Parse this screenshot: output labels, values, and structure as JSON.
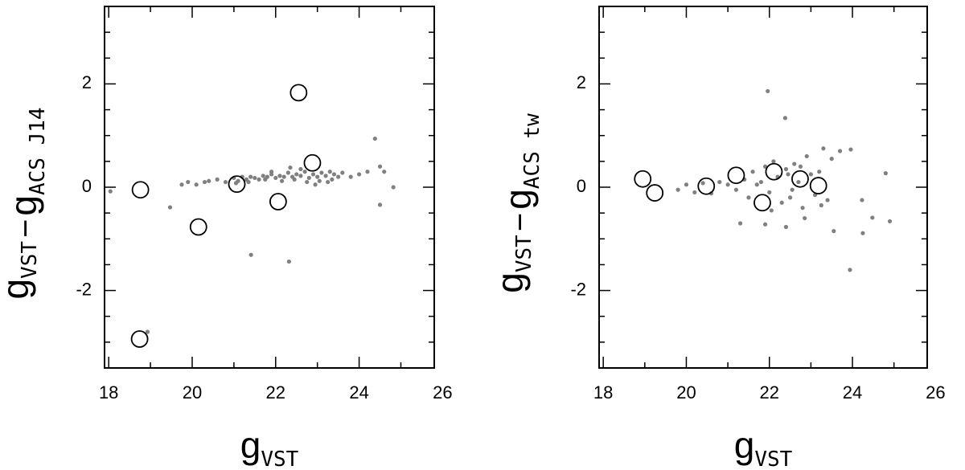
{
  "chart_data": [
    {
      "type": "scatter",
      "xlabel": [
        {
          "text": "g",
          "sub": "VST"
        }
      ],
      "ylabel": [
        {
          "text": "g",
          "sub": "VST"
        },
        {
          "text": "−"
        },
        {
          "text": "g",
          "sub": "ACS J14"
        }
      ],
      "xlim": [
        17.9,
        25.8
      ],
      "ylim": [
        -3.5,
        3.5
      ],
      "xticks": [
        18,
        20,
        22,
        24,
        26
      ],
      "yticks": [
        -2,
        0,
        2
      ],
      "xminorticks": [
        19,
        21,
        23,
        25
      ],
      "yminorticks": [
        -3,
        -2.5,
        -1.5,
        -1,
        -0.5,
        0.5,
        1,
        1.5,
        2.5,
        3
      ],
      "series": [
        {
          "marker": "dot",
          "color": "#808080",
          "x": [
            18.04,
            19.47,
            19.75,
            19.9,
            20.1,
            20.3,
            20.4,
            20.6,
            20.8,
            21.0,
            21.1,
            21.2,
            21.3,
            21.4,
            21.5,
            21.6,
            21.7,
            21.8,
            21.9,
            22.0,
            22.1,
            22.2,
            22.3,
            22.4,
            22.5,
            22.6,
            22.7,
            22.8,
            22.9,
            23.0,
            23.1,
            23.2,
            23.3,
            23.4,
            23.5,
            23.6,
            21.05,
            21.35,
            21.75,
            22.15,
            22.45,
            22.75,
            23.05,
            23.35,
            23.8,
            24.0,
            24.2,
            24.38,
            24.5,
            24.6,
            24.82,
            21.41,
            22.32,
            18.93,
            24.5,
            22.6,
            22.95,
            23.25,
            21.9,
            22.35
          ],
          "values": [
            -0.08,
            -0.39,
            0.05,
            0.1,
            0.05,
            0.1,
            0.12,
            0.15,
            0.1,
            0.18,
            0.12,
            0.2,
            0.15,
            0.2,
            0.18,
            0.15,
            0.22,
            0.2,
            0.25,
            0.18,
            0.22,
            0.2,
            0.28,
            0.2,
            0.25,
            0.22,
            0.3,
            0.18,
            0.25,
            0.2,
            0.28,
            0.22,
            0.3,
            0.25,
            0.2,
            0.28,
            0.08,
            0.1,
            0.15,
            0.12,
            0.15,
            0.1,
            0.12,
            0.15,
            0.2,
            0.25,
            0.3,
            0.94,
            0.4,
            0.3,
            0.0,
            -1.31,
            -1.44,
            -2.8,
            -0.34,
            0.35,
            0.05,
            0.1,
            0.3,
            0.38
          ]
        },
        {
          "marker": "circle",
          "color": "#000000",
          "x": [
            18.76,
            20.15,
            21.07,
            22.06,
            22.55,
            22.88,
            18.74
          ],
          "values": [
            -0.05,
            -0.77,
            0.06,
            -0.28,
            1.83,
            0.47,
            -2.94
          ]
        }
      ]
    },
    {
      "type": "scatter",
      "xlabel": [
        {
          "text": "g",
          "sub": "VST"
        }
      ],
      "ylabel": [
        {
          "text": "g",
          "sub": "VST"
        },
        {
          "text": "−"
        },
        {
          "text": "g",
          "sub": "ACS tw"
        }
      ],
      "xlim": [
        17.9,
        25.8
      ],
      "ylim": [
        -3.5,
        3.5
      ],
      "xticks": [
        18,
        20,
        22,
        24,
        26
      ],
      "yticks": [
        -2,
        0,
        2
      ],
      "xminorticks": [
        19,
        21,
        23,
        25
      ],
      "yminorticks": [
        -3,
        -2.5,
        -1.5,
        -1,
        -0.5,
        0.5,
        1,
        1.5,
        2.5,
        3
      ],
      "series": [
        {
          "marker": "dot",
          "color": "#808080",
          "x": [
            19.8,
            20.0,
            20.2,
            20.4,
            20.6,
            20.8,
            21.0,
            21.2,
            21.4,
            21.5,
            21.6,
            21.8,
            21.9,
            22.0,
            22.1,
            22.2,
            22.3,
            22.4,
            22.5,
            22.6,
            22.7,
            22.8,
            22.9,
            23.0,
            23.1,
            23.2,
            23.3,
            23.4,
            23.5,
            23.7,
            21.3,
            21.7,
            22.05,
            22.45,
            22.85,
            23.25,
            22.55,
            22.75,
            21.96,
            22.38,
            23.94,
            24.25,
            23.96,
            24.8,
            24.9,
            24.48,
            21.9,
            22.4,
            24.23,
            23.55
          ],
          "values": [
            -0.05,
            0.05,
            -0.1,
            0.08,
            -0.12,
            0.1,
            0.05,
            -0.05,
            0.15,
            -0.2,
            0.3,
            0.1,
            0.4,
            -0.1,
            0.5,
            0.2,
            -0.3,
            0.35,
            -0.2,
            0.45,
            0.1,
            -0.4,
            0.6,
            0.25,
            -0.15,
            0.3,
            0.75,
            -0.25,
            0.55,
            0.7,
            -0.7,
            0.05,
            -0.45,
            0.25,
            -0.6,
            -0.35,
            -0.05,
            0.4,
            1.86,
            1.34,
            -1.6,
            -0.89,
            0.73,
            0.27,
            -0.66,
            -0.59,
            -0.72,
            -0.77,
            -0.25,
            -0.85
          ]
        },
        {
          "marker": "circle",
          "color": "#000000",
          "x": [
            18.95,
            19.24,
            20.48,
            21.2,
            21.83,
            22.11,
            22.74,
            23.18
          ],
          "values": [
            0.16,
            -0.11,
            0.02,
            0.23,
            -0.3,
            0.3,
            0.16,
            0.03
          ]
        }
      ]
    }
  ]
}
